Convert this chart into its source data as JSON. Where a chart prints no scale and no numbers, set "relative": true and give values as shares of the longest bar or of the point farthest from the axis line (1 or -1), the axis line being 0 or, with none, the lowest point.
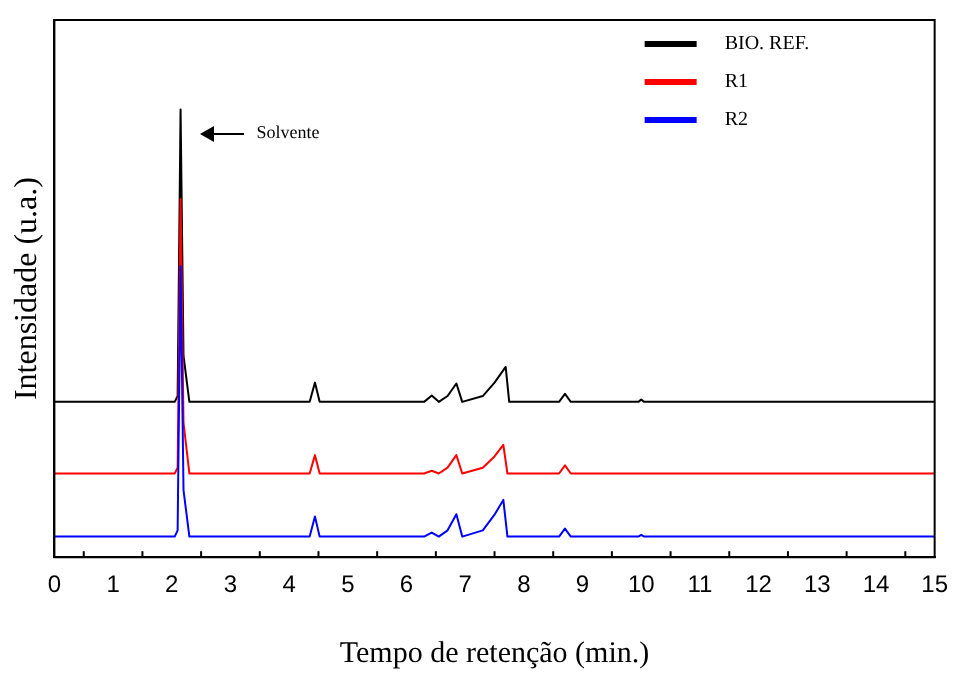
{
  "chart_data": {
    "type": "line",
    "relative": true,
    "xlabel": "Tempo de retenção (min.)",
    "ylabel": "Intensidade (u.a.)",
    "xlim": [
      0,
      15
    ],
    "xticks": [
      0,
      1,
      2,
      3,
      4,
      5,
      6,
      7,
      8,
      9,
      10,
      11,
      12,
      13,
      14,
      15
    ],
    "legend": "top right",
    "marker": "none",
    "grid": false,
    "annotations": [
      "Solvente"
    ],
    "series": [
      {
        "name": "BIO. REF.",
        "color": "#000000",
        "x": [
          0,
          2.05,
          2.1,
          2.15,
          2.2,
          2.3,
          4.35,
          4.44,
          4.52,
          6.3,
          6.43,
          6.55,
          6.7,
          6.85,
          6.95,
          7.3,
          7.5,
          7.69,
          7.75,
          8.6,
          8.7,
          8.8,
          9.95,
          10.0,
          10.05,
          15
        ],
        "values": [
          0.347,
          0.347,
          0.36,
          1.0,
          0.45,
          0.347,
          0.347,
          0.39,
          0.347,
          0.347,
          0.361,
          0.347,
          0.36,
          0.388,
          0.347,
          0.36,
          0.39,
          0.425,
          0.347,
          0.347,
          0.365,
          0.347,
          0.347,
          0.352,
          0.347,
          0.347
        ]
      },
      {
        "name": "R1",
        "color": "#ff0000",
        "x": [
          0,
          2.05,
          2.1,
          2.15,
          2.2,
          2.3,
          4.35,
          4.44,
          4.52,
          6.3,
          6.43,
          6.55,
          6.7,
          6.85,
          6.95,
          7.3,
          7.5,
          7.65,
          7.72,
          8.6,
          8.7,
          8.8,
          15
        ],
        "values": [
          0.187,
          0.187,
          0.2,
          0.8,
          0.3,
          0.187,
          0.187,
          0.228,
          0.187,
          0.187,
          0.193,
          0.187,
          0.2,
          0.228,
          0.187,
          0.2,
          0.225,
          0.251,
          0.187,
          0.187,
          0.205,
          0.187,
          0.187
        ]
      },
      {
        "name": "R2",
        "color": "#0000ff",
        "x": [
          0,
          2.05,
          2.1,
          2.15,
          2.2,
          2.3,
          4.35,
          4.44,
          4.52,
          6.3,
          6.43,
          6.55,
          6.7,
          6.85,
          6.95,
          7.3,
          7.5,
          7.65,
          7.72,
          8.6,
          8.7,
          8.8,
          9.95,
          10.0,
          10.05,
          15
        ],
        "values": [
          0.046,
          0.046,
          0.06,
          0.65,
          0.15,
          0.046,
          0.046,
          0.091,
          0.046,
          0.046,
          0.055,
          0.046,
          0.06,
          0.096,
          0.046,
          0.06,
          0.095,
          0.128,
          0.046,
          0.046,
          0.064,
          0.046,
          0.046,
          0.05,
          0.046,
          0.046
        ]
      }
    ]
  }
}
